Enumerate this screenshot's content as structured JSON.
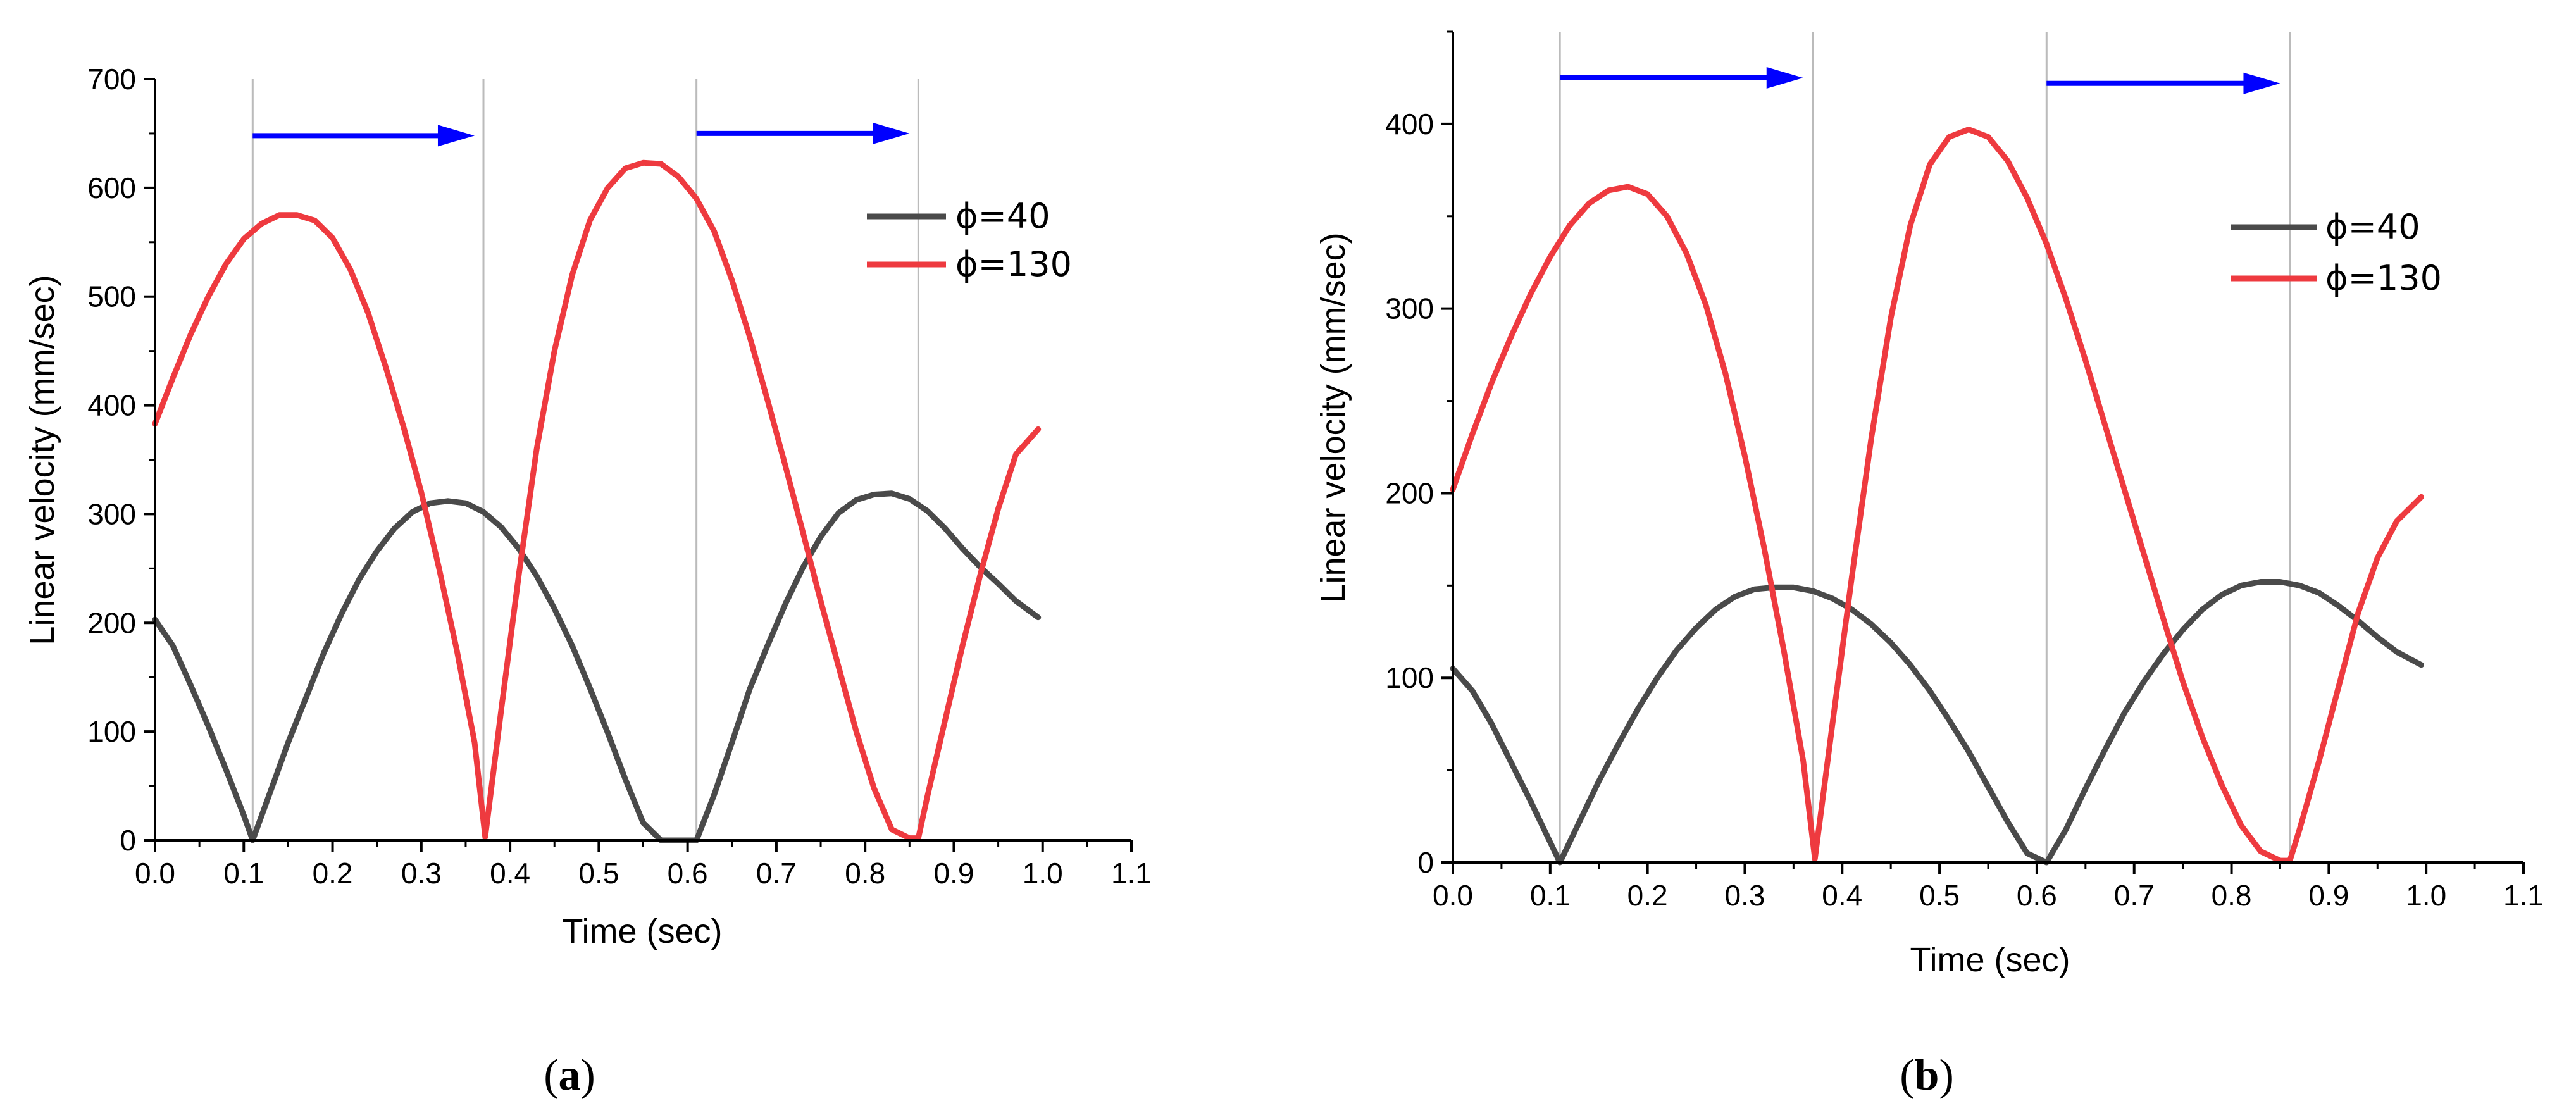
{
  "colors": {
    "red": "#EE3A3F",
    "gray": "#4A4A4A",
    "arrow": "#0000FF",
    "guide": "#BBBBBB"
  },
  "chart_data": [
    {
      "id": "a",
      "caption": "a",
      "type": "line",
      "xlabel": "Time (sec)",
      "ylabel": "Linear velocity (mm/sec)",
      "xlim": [
        0.0,
        1.1
      ],
      "ylim": [
        0,
        700
      ],
      "xticks": [
        "0.0",
        "0.1",
        "0.2",
        "0.3",
        "0.4",
        "0.5",
        "0.6",
        "0.7",
        "0.8",
        "0.9",
        "1.0",
        "1.1"
      ],
      "yticks": [
        "0",
        "100",
        "200",
        "300",
        "400",
        "500",
        "600",
        "700"
      ],
      "legend": [
        "ϕ=40",
        "ϕ=130"
      ],
      "legend_position": "top-right",
      "guide_lines_x": [
        0.11,
        0.37,
        0.61,
        0.86
      ],
      "arrows": [
        {
          "x1": 0.11,
          "x2": 0.36,
          "y": 648
        },
        {
          "x1": 0.61,
          "x2": 0.85,
          "y": 650
        }
      ],
      "series": [
        {
          "name": "ϕ=40",
          "color": "gray",
          "x": [
            0.0,
            0.02,
            0.04,
            0.06,
            0.08,
            0.1,
            0.11,
            0.13,
            0.15,
            0.17,
            0.19,
            0.21,
            0.23,
            0.25,
            0.27,
            0.29,
            0.31,
            0.33,
            0.35,
            0.37,
            0.39,
            0.41,
            0.43,
            0.45,
            0.47,
            0.49,
            0.51,
            0.53,
            0.55,
            0.57,
            0.59,
            0.61,
            0.63,
            0.65,
            0.67,
            0.69,
            0.71,
            0.73,
            0.75,
            0.77,
            0.79,
            0.81,
            0.83,
            0.85,
            0.87,
            0.89,
            0.91,
            0.93,
            0.95,
            0.97,
            0.995
          ],
          "y": [
            203,
            179,
            143,
            105,
            65,
            23,
            0,
            45,
            90,
            131,
            172,
            208,
            240,
            266,
            287,
            302,
            310,
            312,
            310,
            302,
            288,
            268,
            243,
            213,
            179,
            140,
            99,
            56,
            16,
            0,
            0,
            0,
            42,
            90,
            139,
            179,
            217,
            251,
            279,
            301,
            313,
            318,
            319,
            314,
            303,
            287,
            268,
            251,
            236,
            220,
            205
          ]
        },
        {
          "name": "ϕ=130",
          "color": "red",
          "x": [
            0.0,
            0.02,
            0.04,
            0.06,
            0.08,
            0.1,
            0.12,
            0.14,
            0.16,
            0.18,
            0.2,
            0.22,
            0.24,
            0.26,
            0.28,
            0.3,
            0.32,
            0.34,
            0.36,
            0.372,
            0.39,
            0.41,
            0.43,
            0.45,
            0.47,
            0.49,
            0.51,
            0.53,
            0.55,
            0.57,
            0.59,
            0.61,
            0.63,
            0.65,
            0.67,
            0.69,
            0.71,
            0.73,
            0.75,
            0.77,
            0.79,
            0.81,
            0.83,
            0.85,
            0.86,
            0.87,
            0.89,
            0.91,
            0.93,
            0.95,
            0.97,
            0.995
          ],
          "y": [
            383,
            425,
            465,
            500,
            530,
            553,
            567,
            575,
            575,
            570,
            554,
            525,
            485,
            435,
            380,
            320,
            250,
            175,
            90,
            3,
            120,
            245,
            360,
            450,
            520,
            570,
            600,
            618,
            623,
            622,
            610,
            590,
            560,
            515,
            463,
            405,
            345,
            283,
            220,
            160,
            100,
            48,
            10,
            2,
            2,
            40,
            110,
            180,
            245,
            305,
            355,
            378
          ]
        }
      ]
    },
    {
      "id": "b",
      "caption": "b",
      "type": "line",
      "xlabel": "Time (sec)",
      "ylabel": "Linear velocity (mm/sec)",
      "xlim": [
        0.0,
        1.1
      ],
      "ylim": [
        0,
        450
      ],
      "xticks": [
        "0.0",
        "0.1",
        "0.2",
        "0.3",
        "0.4",
        "0.5",
        "0.6",
        "0.7",
        "0.8",
        "0.9",
        "1.0",
        "1.1"
      ],
      "yticks": [
        "0",
        "100",
        "200",
        "300",
        "400"
      ],
      "legend": [
        "ϕ=40",
        "ϕ=130"
      ],
      "legend_position": "top-right",
      "guide_lines_x": [
        0.11,
        0.37,
        0.61,
        0.86
      ],
      "arrows": [
        {
          "x1": 0.11,
          "x2": 0.36,
          "y": 425
        },
        {
          "x1": 0.61,
          "x2": 0.85,
          "y": 422
        }
      ],
      "series": [
        {
          "name": "ϕ=40",
          "color": "gray",
          "x": [
            0.0,
            0.02,
            0.04,
            0.06,
            0.08,
            0.1,
            0.11,
            0.13,
            0.15,
            0.17,
            0.19,
            0.21,
            0.23,
            0.25,
            0.27,
            0.29,
            0.31,
            0.33,
            0.35,
            0.37,
            0.39,
            0.41,
            0.43,
            0.45,
            0.47,
            0.49,
            0.51,
            0.53,
            0.55,
            0.57,
            0.59,
            0.61,
            0.63,
            0.65,
            0.67,
            0.69,
            0.71,
            0.73,
            0.75,
            0.77,
            0.79,
            0.81,
            0.83,
            0.85,
            0.87,
            0.89,
            0.91,
            0.93,
            0.95,
            0.97,
            0.995
          ],
          "y": [
            105,
            93,
            75,
            54,
            33,
            11,
            0,
            22,
            44,
            64,
            83,
            100,
            115,
            127,
            137,
            144,
            148,
            149,
            149,
            147,
            143,
            137,
            129,
            119,
            107,
            93,
            77,
            60,
            41,
            22,
            5,
            0,
            18,
            40,
            61,
            81,
            98,
            113,
            126,
            137,
            145,
            150,
            152,
            152,
            150,
            146,
            139,
            131,
            122,
            114,
            107
          ]
        },
        {
          "name": "ϕ=130",
          "color": "red",
          "x": [
            0.0,
            0.02,
            0.04,
            0.06,
            0.08,
            0.1,
            0.12,
            0.14,
            0.16,
            0.18,
            0.2,
            0.22,
            0.24,
            0.26,
            0.28,
            0.3,
            0.32,
            0.34,
            0.36,
            0.372,
            0.39,
            0.41,
            0.43,
            0.45,
            0.47,
            0.49,
            0.51,
            0.53,
            0.55,
            0.57,
            0.59,
            0.61,
            0.63,
            0.65,
            0.67,
            0.69,
            0.71,
            0.73,
            0.75,
            0.77,
            0.79,
            0.81,
            0.83,
            0.85,
            0.86,
            0.87,
            0.89,
            0.91,
            0.93,
            0.95,
            0.97,
            0.995
          ],
          "y": [
            202,
            232,
            260,
            285,
            308,
            328,
            345,
            357,
            364,
            366,
            362,
            350,
            330,
            302,
            265,
            220,
            170,
            115,
            55,
            2,
            75,
            155,
            230,
            295,
            345,
            378,
            393,
            397,
            393,
            380,
            360,
            335,
            305,
            272,
            237,
            202,
            167,
            132,
            98,
            68,
            42,
            20,
            6,
            1,
            1,
            18,
            55,
            95,
            135,
            165,
            185,
            198
          ]
        }
      ]
    }
  ]
}
